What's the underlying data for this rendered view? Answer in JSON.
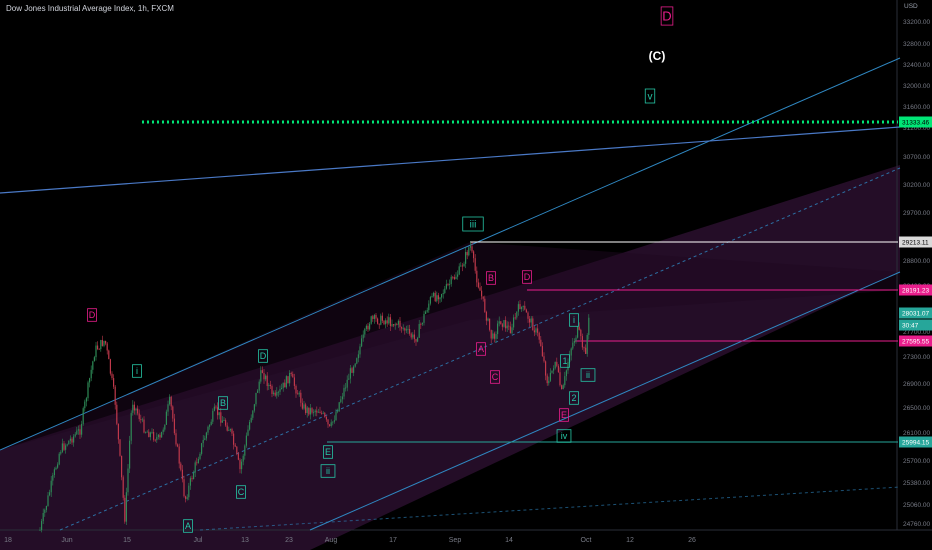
{
  "title": "Dow Jones Industrial Average Index, 1h, FXCM",
  "currency": "USD",
  "colors": {
    "background": "#000000",
    "channel_line": "#2f87c1",
    "channel_fill": "#2a0f2e",
    "green_candle": "#2e8b57",
    "red_candle": "#c0394b",
    "pink": "#e91e8c",
    "teal": "#26c6a6",
    "dotted_level": "#00e676",
    "white_level": "#ffffff"
  },
  "chart_data": {
    "type": "candlestick",
    "x_tick_labels": [
      "18",
      "Jun",
      "15",
      "Jul",
      "13",
      "23",
      "Aug",
      "17",
      "Sep",
      "14",
      "Oct",
      "12",
      "26"
    ],
    "y_tick_labels": [
      "33200.00",
      "32800.00",
      "32400.00",
      "32000.00",
      "31600.00",
      "31200.00",
      "30700.00",
      "30200.00",
      "29700.00",
      "29200.00",
      "28800.00",
      "28400.00",
      "27700.00",
      "27300.00",
      "26900.00",
      "26500.00",
      "26100.00",
      "25700.00",
      "25380.00",
      "25060.00",
      "24760.00"
    ],
    "price_labels": [
      {
        "text": "31333.46",
        "color": "#00e676",
        "text_color": "#000000"
      },
      {
        "text": "29213.11",
        "color": "#d9d9d9",
        "text_color": "#000000"
      },
      {
        "text": "28191.23",
        "color": "#e91e8c",
        "text_color": "#ffffff"
      },
      {
        "text": "28031.07",
        "color": "#26a69a",
        "text_color": "#ffffff"
      },
      {
        "text": "30:47",
        "color": "#26a69a",
        "text_color": "#ffffff"
      },
      {
        "text": "27595.55",
        "color": "#e91e8c",
        "text_color": "#ffffff"
      },
      {
        "text": "25994.15",
        "color": "#26a69a",
        "text_color": "#ffffff"
      }
    ],
    "wave_labels": [
      {
        "text": "D",
        "color": "#e91e8c"
      },
      {
        "text": "(C)",
        "color": "#ffffff"
      },
      {
        "text": "v",
        "color": "#26c6a6"
      },
      {
        "text": "iii",
        "color": "#26c6a6"
      },
      {
        "text": "B",
        "color": "#e91e8c"
      },
      {
        "text": "D",
        "color": "#e91e8c"
      },
      {
        "text": "D",
        "color": "#e91e8c"
      },
      {
        "text": "i",
        "color": "#26c6a6"
      },
      {
        "text": "D",
        "color": "#26c6a6"
      },
      {
        "text": "B",
        "color": "#26c6a6"
      },
      {
        "text": "A",
        "color": "#e91e8c"
      },
      {
        "text": "C",
        "color": "#e91e8c"
      },
      {
        "text": "1",
        "color": "#26c6a6"
      },
      {
        "text": "i",
        "color": "#26c6a6"
      },
      {
        "text": "ii",
        "color": "#26c6a6"
      },
      {
        "text": "2",
        "color": "#26c6a6"
      },
      {
        "text": "E",
        "color": "#e91e8c"
      },
      {
        "text": "iv",
        "color": "#26c6a6"
      },
      {
        "text": "E",
        "color": "#26c6a6"
      },
      {
        "text": "ii",
        "color": "#26c6a6"
      },
      {
        "text": "C",
        "color": "#26c6a6"
      },
      {
        "text": "A",
        "color": "#26c6a6"
      }
    ]
  }
}
